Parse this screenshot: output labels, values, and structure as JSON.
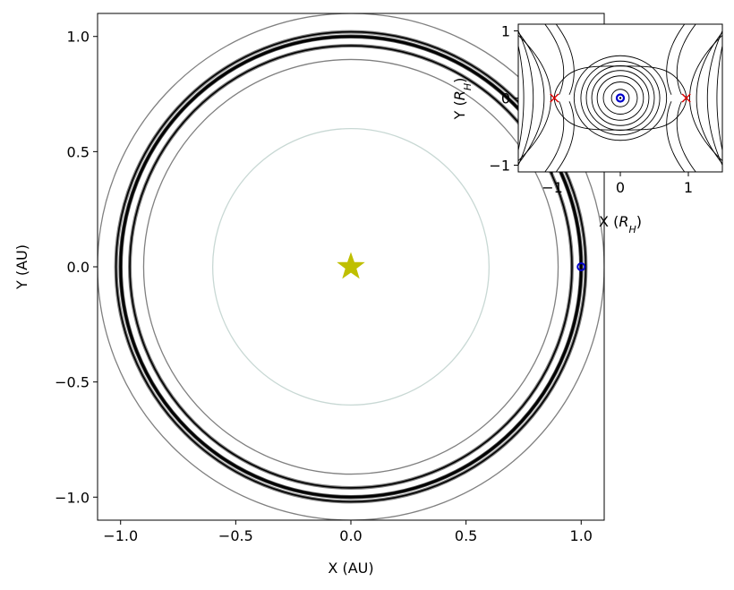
{
  "chart_data": [
    {
      "type": "line",
      "panel": "main",
      "xlabel": "X (AU)",
      "ylabel": "Y (AU)",
      "xlim": [
        -1.1,
        1.1
      ],
      "ylim": [
        -1.1,
        1.1
      ],
      "xticks": [
        -1.0,
        -0.5,
        0.0,
        0.5,
        1.0
      ],
      "yticks": [
        -1.0,
        -0.5,
        0.0,
        0.5,
        1.0
      ],
      "grid": false,
      "star": {
        "x": 0.0,
        "y": 0.0,
        "color": "#bfbf00"
      },
      "planet": {
        "x": 1.0,
        "y": 0.0,
        "color": "#0000cc"
      },
      "circles": [
        {
          "r": 0.6,
          "color": "#c8d8d4",
          "weight": "thin"
        },
        {
          "r": 0.9,
          "color": "#808080",
          "weight": "thin"
        },
        {
          "r": 0.96,
          "color": "#000000",
          "weight": "band"
        },
        {
          "r": 1.0,
          "color": "#000000",
          "weight": "thick"
        },
        {
          "r": 1.02,
          "color": "#000000",
          "weight": "band"
        },
        {
          "r": 1.1,
          "color": "#808080",
          "weight": "thin"
        }
      ]
    },
    {
      "type": "line",
      "panel": "inset",
      "xlabel": "X (R_H)",
      "ylabel": "Y (R_H)",
      "xlim": [
        -1.5,
        1.5
      ],
      "ylim": [
        -1.1,
        1.1
      ],
      "xticks": [
        -1,
        0,
        1
      ],
      "yticks": [
        -1,
        0,
        1
      ],
      "grid": false,
      "lagrange_points": [
        {
          "x": -0.97,
          "y": 0.0,
          "color": "#dd0000"
        },
        {
          "x": 0.97,
          "y": 0.0,
          "color": "#dd0000"
        }
      ],
      "planet": {
        "x": 0.0,
        "y": 0.0,
        "color": "#0000cc"
      },
      "closed_contours": [
        {
          "rx": 0.13,
          "ry": 0.13
        },
        {
          "rx": 0.25,
          "ry": 0.24
        },
        {
          "rx": 0.34,
          "ry": 0.33
        },
        {
          "rx": 0.42,
          "ry": 0.41
        },
        {
          "rx": 0.5,
          "ry": 0.48
        },
        {
          "rx": 0.58,
          "ry": 0.55
        },
        {
          "rx": 0.68,
          "ry": 0.63
        }
      ],
      "colors": {
        "contour": "#000000",
        "lagrange": "#dd0000",
        "planet": "#0000cc"
      }
    }
  ]
}
